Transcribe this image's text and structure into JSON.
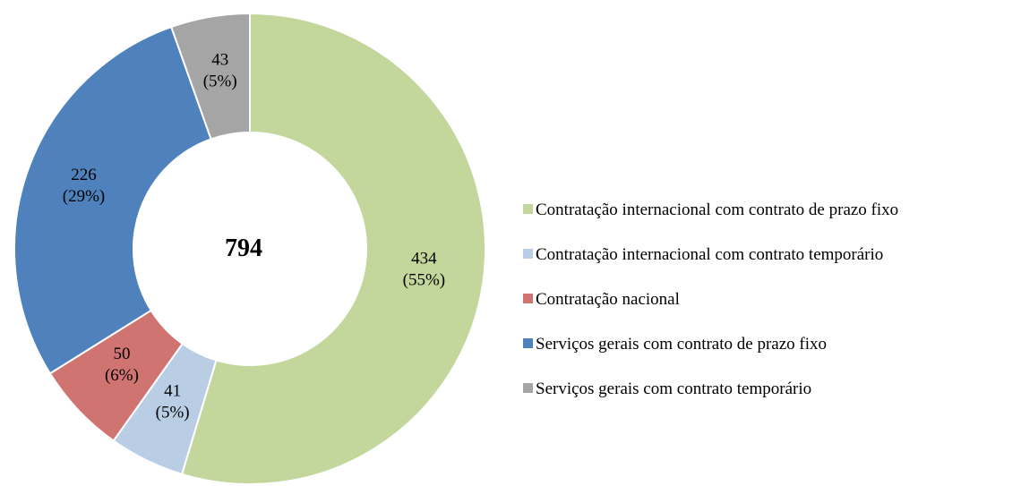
{
  "chart_data": {
    "type": "donut",
    "total": 794,
    "categories": [
      "Contratação internacional com contrato de prazo fixo",
      "Contratação internacional com contrato temporário",
      "Contratação nacional",
      "Serviços gerais com contrato de prazo fixo",
      "Serviços gerais com contrato temporário"
    ],
    "values": [
      434,
      41,
      50,
      226,
      43
    ],
    "percent_labels": [
      "(55%)",
      "(5%)",
      "(6%)",
      "(29%)",
      "(5%)"
    ],
    "colors": [
      "#c3d69b",
      "#b9cde5",
      "#d07472",
      "#4f81bd",
      "#a5a5a5"
    ],
    "legend": "right"
  }
}
